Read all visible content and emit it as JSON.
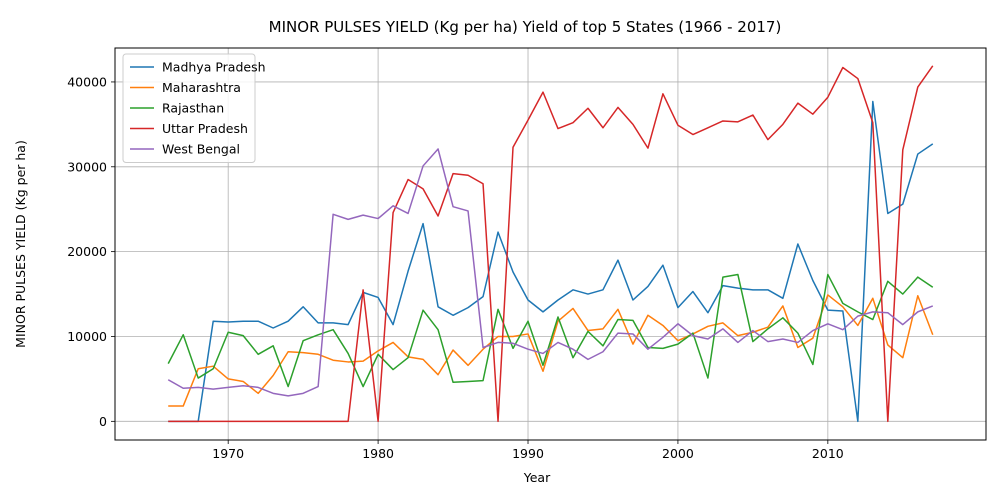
{
  "chart_data": {
    "type": "line",
    "title": "MINOR PULSES YIELD (Kg per ha) Yield of top 5 States (1966 - 2017)",
    "xlabel": "Year",
    "ylabel": "MINOR PULSES YIELD (Kg per ha)",
    "x": [
      1966,
      1967,
      1968,
      1969,
      1970,
      1971,
      1972,
      1973,
      1974,
      1975,
      1976,
      1977,
      1978,
      1979,
      1980,
      1981,
      1982,
      1983,
      1984,
      1985,
      1986,
      1987,
      1988,
      1989,
      1990,
      1991,
      1992,
      1993,
      1994,
      1995,
      1996,
      1997,
      1998,
      1999,
      2000,
      2001,
      2002,
      2003,
      2004,
      2005,
      2006,
      2007,
      2008,
      2009,
      2010,
      2011,
      2012,
      2013,
      2014,
      2015,
      2016,
      2017
    ],
    "xlim": [
      1962.45,
      2020.55
    ],
    "ylim": [
      -2200,
      44000
    ],
    "xticks": [
      1970,
      1980,
      1990,
      2000,
      2010
    ],
    "yticks": [
      0,
      10000,
      20000,
      30000,
      40000
    ],
    "grid": true,
    "legend_position": "top-left",
    "series": [
      {
        "name": "Madhya Pradesh",
        "color": "#1f77b4",
        "values": [
          0,
          0,
          0,
          11800,
          11700,
          11800,
          11800,
          11000,
          11800,
          13500,
          11600,
          11600,
          11400,
          15200,
          14600,
          11400,
          17700,
          23300,
          13500,
          12500,
          13400,
          14700,
          22300,
          17600,
          14300,
          12900,
          14300,
          15500,
          15000,
          15500,
          19000,
          14300,
          15900,
          18400,
          13400,
          15300,
          12800,
          16000,
          15700,
          15500,
          15500,
          14500,
          20900,
          16600,
          13100,
          13000,
          0,
          37700,
          24500,
          25600,
          31500,
          32700
        ]
      },
      {
        "name": "Maharashtra",
        "color": "#ff7f0e",
        "values": [
          1800,
          1800,
          6200,
          6500,
          5000,
          4700,
          3300,
          5400,
          8200,
          8100,
          7900,
          7200,
          7000,
          7100,
          8300,
          9300,
          7600,
          7300,
          5500,
          8400,
          6600,
          8500,
          10000,
          10000,
          10300,
          5900,
          11800,
          13300,
          10700,
          10900,
          13200,
          9100,
          12500,
          11300,
          9500,
          10300,
          11200,
          11600,
          10100,
          10500,
          11100,
          13600,
          8700,
          9800,
          14900,
          13500,
          11300,
          14500,
          9000,
          7500,
          14800,
          10200
        ]
      },
      {
        "name": "Rajasthan",
        "color": "#2ca02c",
        "values": [
          6800,
          10200,
          5100,
          6200,
          10500,
          10100,
          7900,
          8900,
          4100,
          9500,
          10200,
          10800,
          8000,
          4100,
          7900,
          6100,
          7500,
          13100,
          10800,
          4600,
          4700,
          4800,
          13200,
          8600,
          11800,
          6600,
          12300,
          7500,
          10600,
          8900,
          12000,
          11900,
          8700,
          8600,
          9100,
          10400,
          5100,
          17000,
          17300,
          9400,
          10900,
          12200,
          10400,
          6700,
          17300,
          13900,
          12900,
          12000,
          16500,
          15000,
          17000,
          15800
        ]
      },
      {
        "name": "Uttar Pradesh",
        "color": "#d62728",
        "values": [
          0,
          0,
          0,
          0,
          0,
          0,
          0,
          0,
          0,
          0,
          0,
          0,
          0,
          15500,
          0,
          24600,
          28500,
          27400,
          24200,
          29200,
          29000,
          28000,
          0,
          32300,
          35500,
          38800,
          34500,
          35200,
          36900,
          34600,
          37000,
          35000,
          32200,
          38600,
          34900,
          33800,
          34600,
          35400,
          35300,
          36100,
          33200,
          35000,
          37500,
          36200,
          38200,
          41700,
          40400,
          35200,
          0,
          32000,
          39400,
          41900
        ]
      },
      {
        "name": "West Bengal",
        "color": "#9467bd",
        "values": [
          4900,
          3900,
          4000,
          3800,
          4000,
          4200,
          4000,
          3300,
          3000,
          3300,
          4100,
          24400,
          23800,
          24300,
          23900,
          25400,
          24500,
          30100,
          32100,
          25300,
          24800,
          8700,
          9300,
          9200,
          8500,
          8000,
          9300,
          8500,
          7300,
          8200,
          10400,
          10300,
          8500,
          9900,
          11500,
          10100,
          9700,
          10900,
          9300,
          10700,
          9400,
          9700,
          9300,
          10700,
          11500,
          10800,
          12400,
          12900,
          12800,
          11400,
          12900,
          13600
        ]
      }
    ]
  }
}
